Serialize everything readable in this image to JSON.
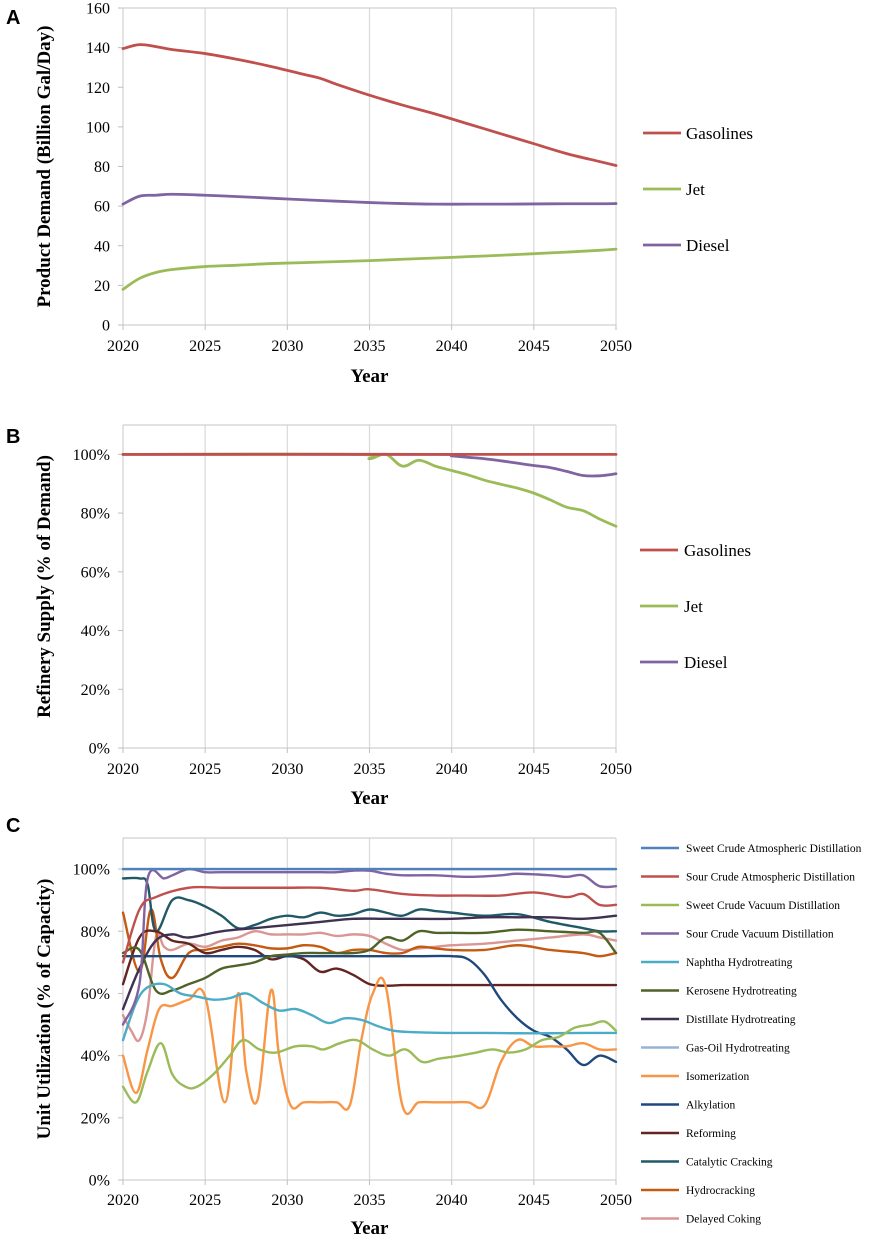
{
  "chart_data": [
    {
      "type": "line",
      "panel_label": "A",
      "xlabel": "Year",
      "ylabel": "Product Demand (Billion Gal/Day)",
      "xlim": [
        2020,
        2050
      ],
      "ylim": [
        0,
        160
      ],
      "xticks": [
        "2020",
        "2025",
        "2030",
        "2035",
        "2040",
        "2045",
        "2050"
      ],
      "yticks": [
        "0",
        "20",
        "40",
        "60",
        "80",
        "100",
        "120",
        "140",
        "160"
      ],
      "legend_position": "right",
      "series": [
        {
          "name": "Gasolines",
          "color": "#c0504d",
          "x": [
            2020,
            2021,
            2022,
            2023,
            2025,
            2027,
            2029,
            2031,
            2032,
            2033,
            2035,
            2037,
            2039,
            2041,
            2043,
            2045,
            2047,
            2049,
            2050
          ],
          "values": [
            139.5,
            141.5,
            140.5,
            139,
            137,
            134,
            130.5,
            126.5,
            124.5,
            121.5,
            116,
            111,
            106.5,
            101.5,
            96.5,
            91.5,
            86.5,
            82.5,
            80.5
          ]
        },
        {
          "name": "Jet",
          "color": "#9bbb59",
          "x": [
            2020,
            2021,
            2022,
            2023,
            2025,
            2027,
            2029,
            2031,
            2033,
            2035,
            2037,
            2039,
            2041,
            2043,
            2045,
            2047,
            2049,
            2050
          ],
          "values": [
            18,
            23.5,
            26.5,
            28,
            29.5,
            30.2,
            31,
            31.5,
            32,
            32.5,
            33.2,
            33.8,
            34.5,
            35.2,
            36,
            36.8,
            37.7,
            38.3
          ]
        },
        {
          "name": "Diesel",
          "color": "#8064a2",
          "x": [
            2020,
            2021,
            2022,
            2023,
            2025,
            2027,
            2029,
            2031,
            2033,
            2035,
            2037,
            2039,
            2041,
            2043,
            2045,
            2047,
            2049,
            2050
          ],
          "values": [
            61,
            65,
            65.5,
            66,
            65.5,
            64.8,
            64,
            63.2,
            62.5,
            61.8,
            61.3,
            61,
            61,
            61,
            61.1,
            61.2,
            61.2,
            61.3
          ]
        }
      ]
    },
    {
      "type": "line",
      "panel_label": "B",
      "xlabel": "Year",
      "ylabel": "Refinery Supply (% of Demand)",
      "xlim": [
        2020,
        2050
      ],
      "ylim": [
        0,
        110
      ],
      "xticks": [
        "2020",
        "2025",
        "2030",
        "2035",
        "2040",
        "2045",
        "2050"
      ],
      "yticks": [
        "0%",
        "20%",
        "40%",
        "60%",
        "80%",
        "100%"
      ],
      "legend_position": "right",
      "series": [
        {
          "name": "Gasolines",
          "color": "#c0504d",
          "x": [
            2020,
            2050
          ],
          "values": [
            100,
            100
          ]
        },
        {
          "name": "Jet",
          "color": "#9bbb59",
          "x": [
            2020,
            2034,
            2035,
            2036,
            2037,
            2038,
            2039,
            2040,
            2041,
            2042,
            2043,
            2044,
            2045,
            2046,
            2047,
            2048,
            2049,
            2050
          ],
          "values": [
            100,
            100,
            98.5,
            100,
            96,
            98,
            96,
            94.5,
            93,
            91.2,
            89.8,
            88.5,
            86.8,
            84.5,
            82,
            80.8,
            78,
            75.5
          ]
        },
        {
          "name": "Diesel",
          "color": "#8064a2",
          "x": [
            2020,
            2039,
            2040,
            2041,
            2042,
            2043,
            2044,
            2045,
            2046,
            2047,
            2048,
            2049,
            2050
          ],
          "values": [
            100,
            100,
            99.5,
            99,
            98.5,
            97.8,
            97,
            96.2,
            95.5,
            94.2,
            92.8,
            92.7,
            93.4
          ]
        }
      ]
    },
    {
      "type": "line",
      "panel_label": "C",
      "xlabel": "Year",
      "ylabel": "Unit Utilization (% of Capacity)",
      "xlim": [
        2020,
        2050
      ],
      "ylim": [
        0,
        110
      ],
      "xticks": [
        "2020",
        "2025",
        "2030",
        "2035",
        "2040",
        "2045",
        "2050"
      ],
      "yticks": [
        "0%",
        "20%",
        "40%",
        "60%",
        "80%",
        "100%"
      ],
      "legend_position": "right",
      "series": [
        {
          "name": "Sweet Crude Atmospheric Distillation",
          "color": "#4f81bd",
          "x": [
            2020,
            2050
          ],
          "values": [
            100,
            100
          ]
        },
        {
          "name": "Sour Crude Atmospheric Distillation",
          "color": "#c0504d",
          "x": [
            2020,
            2021,
            2022,
            2024,
            2026,
            2028,
            2030,
            2032,
            2034,
            2035,
            2037,
            2039,
            2041,
            2043,
            2045,
            2047,
            2048,
            2049,
            2050
          ],
          "values": [
            70,
            87,
            91,
            94,
            94,
            94,
            94,
            94,
            93,
            93.5,
            92,
            91.5,
            91.5,
            91.5,
            92.5,
            91,
            92,
            88.5,
            88.5
          ]
        },
        {
          "name": "Sweet Crude Vacuum Distillation",
          "color": "#9bbb59",
          "x": [
            2020,
            2020.8,
            2021.5,
            2022.3,
            2023,
            2023.8,
            2024.5,
            2025.5,
            2026.5,
            2027.3,
            2028.3,
            2029.3,
            2030.5,
            2031.5,
            2032.2,
            2033.2,
            2034.2,
            2035.2,
            2036.2,
            2037.2,
            2038.2,
            2039.2,
            2040.5,
            2041.5,
            2042.5,
            2043.5,
            2044.5,
            2045.5,
            2046.5,
            2047.5,
            2048.5,
            2049.3,
            2050
          ],
          "values": [
            30,
            25,
            35,
            44,
            34,
            30,
            30,
            34,
            40,
            45,
            42,
            41,
            43,
            43,
            42,
            44,
            45,
            42,
            40,
            42,
            38,
            39,
            40,
            41,
            42,
            41,
            42,
            45,
            46,
            49,
            50,
            51,
            48
          ]
        },
        {
          "name": "Sour Crude Vacuum Distillation",
          "color": "#8064a2",
          "x": [
            2020,
            2021,
            2021.5,
            2022.5,
            2023,
            2024,
            2025,
            2026,
            2028,
            2030,
            2032,
            2033,
            2034,
            2035,
            2036,
            2037,
            2039,
            2041,
            2043,
            2044,
            2046,
            2047,
            2048,
            2049,
            2050
          ],
          "values": [
            50,
            63,
            97,
            97,
            98,
            100,
            99,
            99,
            99,
            99,
            99,
            99,
            99.5,
            99.5,
            98.5,
            98,
            98,
            97.5,
            98,
            98.5,
            98,
            97.5,
            98,
            94.5,
            94.5
          ]
        },
        {
          "name": "Naphtha Hydrotreating",
          "color": "#4bacc6",
          "x": [
            2020,
            2020.8,
            2021.5,
            2022.5,
            2023.5,
            2024.5,
            2025.5,
            2026.5,
            2027.5,
            2028.5,
            2029.5,
            2030.5,
            2031.5,
            2032.5,
            2033.5,
            2034.5,
            2035.5,
            2036.5,
            2038,
            2040,
            2042,
            2044,
            2046,
            2048,
            2050
          ],
          "values": [
            45,
            57,
            62,
            63,
            60,
            59,
            58,
            58.5,
            60,
            57,
            54.5,
            55,
            53,
            50.5,
            52,
            51.5,
            49.5,
            48,
            47.5,
            47.3,
            47.3,
            47.2,
            47.2,
            47.3,
            47.3
          ]
        },
        {
          "name": "Kerosene Hydrotreating",
          "color": "#4f6228",
          "x": [
            2020,
            2021,
            2022,
            2023,
            2024,
            2025,
            2026,
            2027,
            2028,
            2029,
            2030,
            2031,
            2032,
            2033,
            2034,
            2035,
            2036,
            2037,
            2038,
            2039,
            2040,
            2042,
            2044,
            2046,
            2048,
            2049,
            2050
          ],
          "values": [
            73,
            74,
            61,
            61,
            63,
            65,
            68,
            69,
            70,
            72,
            72.5,
            73,
            73,
            73,
            73,
            74,
            78,
            77,
            80,
            79.5,
            79.5,
            79.5,
            80.5,
            80,
            79.5,
            79.5,
            73
          ]
        },
        {
          "name": "Distillate Hydrotreating",
          "color": "#3f3151",
          "x": [
            2020,
            2021,
            2022,
            2023,
            2024,
            2026,
            2028,
            2030,
            2032,
            2034,
            2036,
            2038,
            2040,
            2042,
            2044,
            2046,
            2048,
            2050
          ],
          "values": [
            55,
            68,
            77,
            79,
            78,
            80,
            81,
            82,
            83,
            84,
            84,
            84,
            84,
            84.5,
            84.5,
            84.5,
            84,
            85
          ]
        },
        {
          "name": "Gas-Oil Hydrotreating",
          "color": "#95b3d7",
          "x": [
            2020,
            2050
          ],
          "values": [
            100,
            100
          ]
        },
        {
          "name": "Isomerization",
          "color": "#f79646",
          "x": [
            2020,
            2020.8,
            2021.5,
            2022.2,
            2023,
            2024,
            2025,
            2026.2,
            2027,
            2027.5,
            2028.2,
            2029,
            2029.5,
            2030.2,
            2031,
            2032,
            2033,
            2033.8,
            2034.5,
            2035.2,
            2036,
            2037,
            2038,
            2039,
            2040,
            2041,
            2042,
            2043,
            2044,
            2045,
            2046,
            2047,
            2048,
            2049,
            2050
          ],
          "values": [
            40,
            28,
            42,
            55,
            56,
            58,
            59,
            25,
            60,
            35,
            26,
            61,
            40,
            24,
            25,
            25,
            25,
            24,
            45,
            60,
            62,
            24,
            25,
            25,
            25,
            25,
            24,
            38,
            45,
            43,
            43,
            43,
            44,
            42,
            42
          ]
        },
        {
          "name": "Alkylation",
          "color": "#1f497d",
          "x": [
            2020,
            2021,
            2022,
            2024,
            2026,
            2028,
            2030,
            2032,
            2034,
            2036,
            2038,
            2040,
            2041,
            2042,
            2043,
            2044,
            2045,
            2046,
            2047,
            2048,
            2049,
            2050
          ],
          "values": [
            72,
            72,
            72,
            72,
            72,
            72,
            72,
            72,
            72,
            72,
            72,
            72,
            71,
            66,
            58,
            52,
            48,
            46,
            42,
            37,
            40,
            38
          ]
        },
        {
          "name": "Reforming",
          "color": "#632523",
          "x": [
            2020,
            2021,
            2022,
            2023,
            2024,
            2025,
            2026,
            2027,
            2028,
            2029,
            2030,
            2031,
            2032,
            2033,
            2034,
            2035,
            2036,
            2037,
            2038,
            2040,
            2042,
            2044,
            2046,
            2048,
            2050
          ],
          "values": [
            63,
            78,
            80,
            77,
            76,
            73,
            74,
            75,
            74,
            71,
            72,
            71,
            67,
            68,
            66,
            63,
            62.5,
            62.7,
            62.7,
            62.7,
            62.7,
            62.7,
            62.7,
            62.7,
            62.7
          ]
        },
        {
          "name": "Catalytic Cracking",
          "color": "#215968",
          "x": [
            2020,
            2021,
            2021.5,
            2022,
            2023,
            2024,
            2025,
            2026,
            2027,
            2028,
            2029,
            2030,
            2031,
            2032,
            2033,
            2034,
            2035,
            2036,
            2037,
            2038,
            2039,
            2040,
            2042,
            2044,
            2046,
            2048,
            2049,
            2050
          ],
          "values": [
            97,
            97,
            95,
            80,
            90,
            90,
            88,
            85,
            81,
            82,
            84,
            85,
            84.5,
            86,
            85,
            85.5,
            87,
            86,
            85,
            87,
            86.5,
            86,
            85,
            85.5,
            83,
            81,
            80,
            80
          ]
        },
        {
          "name": "Hydrocracking",
          "color": "#c55a11",
          "x": [
            2020,
            2021,
            2021.7,
            2022.3,
            2023,
            2024,
            2025,
            2026,
            2027,
            2028,
            2029,
            2030,
            2031,
            2032,
            2033,
            2034,
            2035,
            2036,
            2037,
            2038,
            2039,
            2040,
            2042,
            2044,
            2046,
            2048,
            2049,
            2050
          ],
          "values": [
            86,
            67,
            87,
            71,
            65,
            73,
            74,
            75,
            76,
            75.5,
            74.5,
            74.5,
            75.5,
            75,
            73,
            74,
            74,
            73,
            73,
            75,
            74.5,
            74,
            74,
            75.5,
            74,
            73,
            72,
            73
          ]
        },
        {
          "name": "Delayed Coking",
          "color": "#d99694",
          "x": [
            2020,
            2020.5,
            2021,
            2021.5,
            2022,
            2022.5,
            2023,
            2024,
            2025,
            2026,
            2027,
            2028,
            2029,
            2030,
            2031,
            2032,
            2033,
            2034,
            2035,
            2036,
            2037,
            2038,
            2039,
            2040,
            2042,
            2044,
            2046,
            2048,
            2049,
            2050
          ],
          "values": [
            53,
            48,
            45,
            55,
            78,
            75,
            74,
            76,
            75,
            77,
            78,
            80,
            79,
            79,
            79,
            79.5,
            78.5,
            79,
            78.5,
            76,
            74,
            74.5,
            75,
            75.5,
            76,
            77,
            78,
            79,
            78,
            77
          ]
        }
      ]
    }
  ]
}
